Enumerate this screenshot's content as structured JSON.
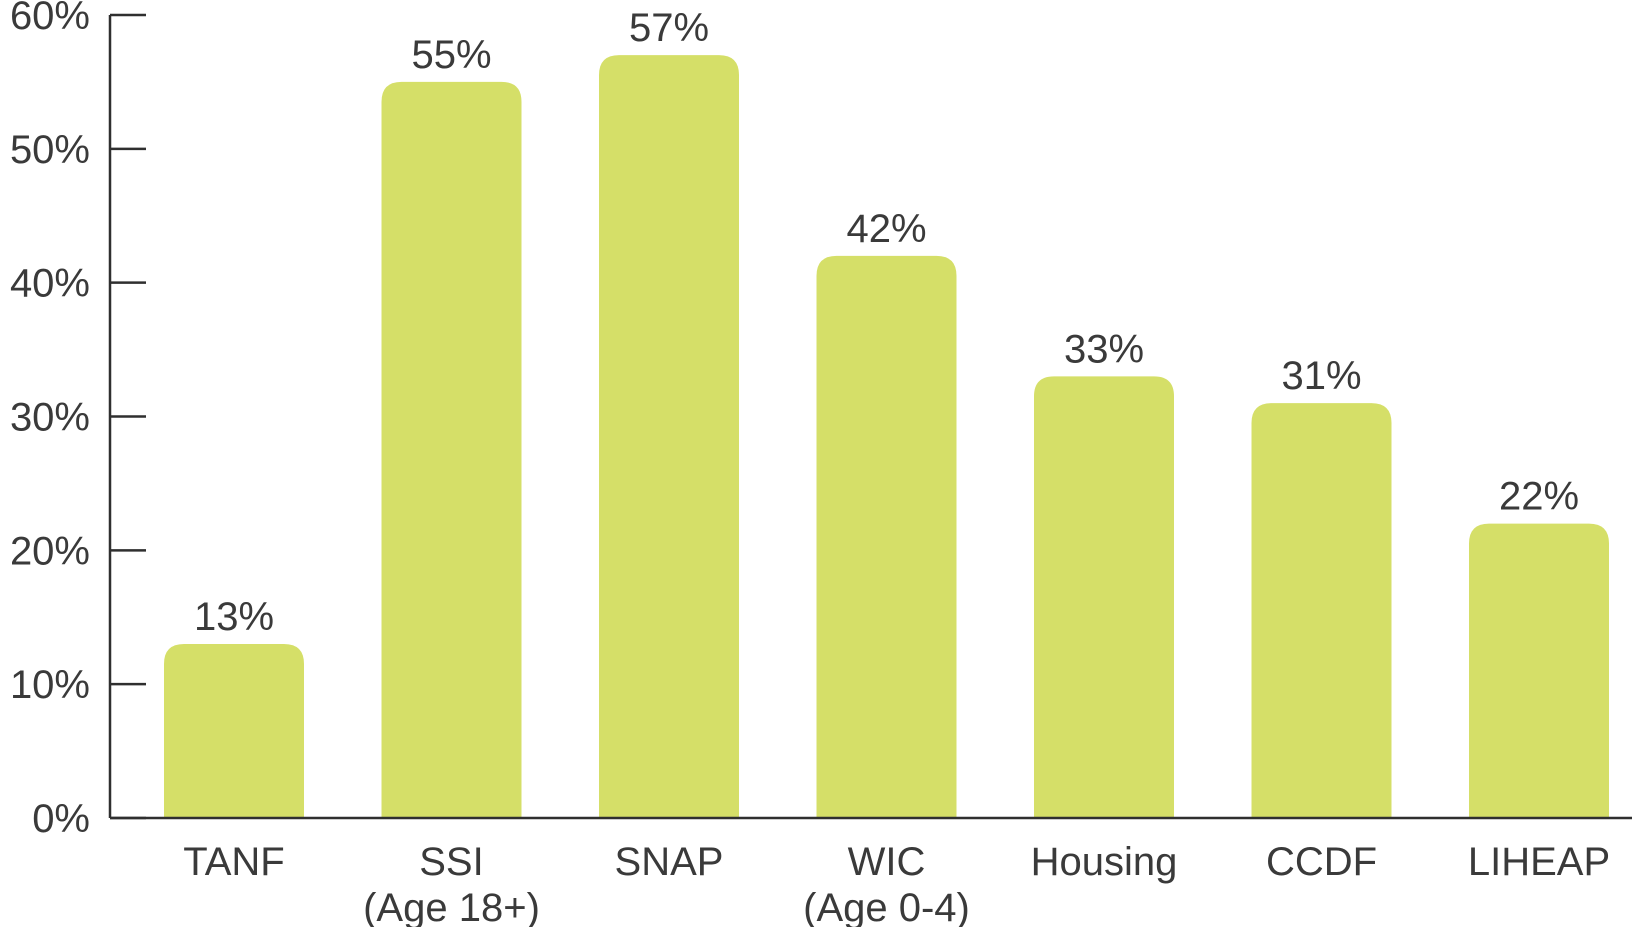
{
  "chart_data": {
    "type": "bar",
    "categories": [
      [
        "TANF"
      ],
      [
        "SSI",
        "(Age 18+)"
      ],
      [
        "SNAP"
      ],
      [
        "WIC",
        "(Age 0-4)"
      ],
      [
        "Housing"
      ],
      [
        "CCDF"
      ],
      [
        "LIHEAP"
      ]
    ],
    "values": [
      13,
      55,
      57,
      42,
      33,
      31,
      22
    ],
    "value_labels": [
      "13%",
      "55%",
      "57%",
      "42%",
      "33%",
      "31%",
      "22%"
    ],
    "y_ticks": [
      0,
      10,
      20,
      30,
      40,
      50,
      60
    ],
    "y_tick_labels": [
      "0%",
      "10%",
      "20%",
      "30%",
      "40%",
      "50%",
      "60%"
    ],
    "ylim": [
      0,
      60
    ],
    "title": "",
    "xlabel": "",
    "ylabel": "",
    "grid": false,
    "legend": "none",
    "bar_color": "#d5df68",
    "text_color": "#3a3a3a",
    "axis_color": "#2f2f2f"
  }
}
